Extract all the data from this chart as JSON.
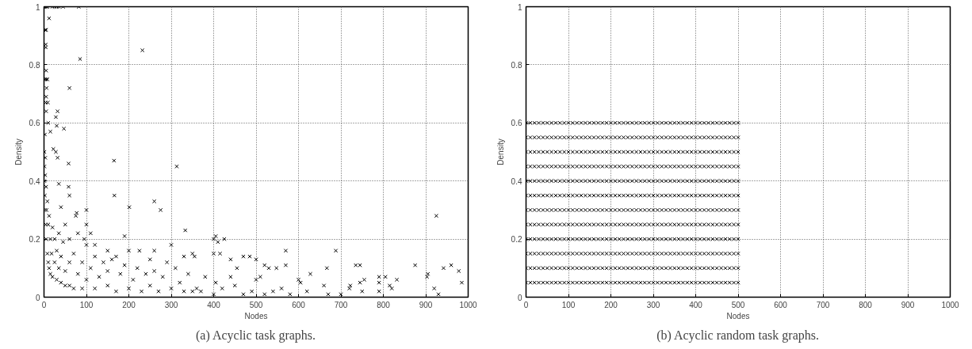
{
  "chart_data": [
    {
      "type": "scatter",
      "title": "(a) Acyclic task graphs.",
      "xlabel": "Nodes",
      "ylabel": "Density",
      "xlim": [
        0,
        1000
      ],
      "ylim": [
        0,
        1
      ],
      "xticks": [
        0,
        100,
        200,
        300,
        400,
        500,
        600,
        700,
        800,
        900,
        1000
      ],
      "yticks": [
        0,
        0.2,
        0.4,
        0.6,
        0.8,
        1
      ],
      "grid": true,
      "marker": "cross",
      "series": [
        {
          "color": "#000000",
          "x": [
            1,
            3,
            5,
            8,
            20,
            25,
            30,
            35,
            45,
            82,
            3,
            5,
            4,
            4,
            12,
            5,
            5,
            2,
            8,
            6,
            9,
            4,
            5,
            5,
            10,
            2,
            15,
            28,
            32,
            30,
            47,
            60,
            85,
            232,
            58,
            22,
            28,
            32,
            165,
            313,
            166,
            260,
            275,
            201,
            333,
            60,
            58,
            35,
            40,
            100,
            77,
            100,
            110,
            190,
            225,
            300,
            405,
            400,
            425,
            410,
            570,
            688,
            925,
            875,
            960,
            942,
            978,
            985,
            903,
            920,
            930,
            745,
            735,
            667,
            570,
            548,
            520,
            530,
            455,
            470,
            485,
            500,
            440,
            400,
            415,
            350,
            330,
            355,
            260,
            250,
            200,
            170,
            150,
            120,
            95,
            80,
            1,
            1,
            1,
            2,
            2,
            3,
            3,
            4,
            5,
            5,
            6,
            8,
            8,
            10,
            10,
            12,
            12,
            15,
            15,
            18,
            20,
            20,
            25,
            25,
            30,
            30,
            35,
            35,
            40,
            40,
            45,
            50,
            50,
            50,
            60,
            60,
            60,
            70,
            70,
            75,
            80,
            90,
            90,
            100,
            100,
            110,
            120,
            120,
            130,
            140,
            150,
            150,
            160,
            170,
            180,
            190,
            200,
            210,
            220,
            230,
            240,
            250,
            260,
            270,
            280,
            290,
            300,
            310,
            320,
            330,
            340,
            350,
            360,
            370,
            380,
            400,
            405,
            420,
            440,
            450,
            470,
            490,
            500,
            510,
            520,
            540,
            560,
            580,
            600,
            605,
            620,
            628,
            660,
            670,
            700,
            720,
            722,
            745,
            755,
            750,
            790,
            790,
            790,
            805,
            815,
            820,
            832,
            905
          ],
          "values": [
            1,
            1,
            1,
            1,
            1,
            1,
            1,
            1,
            1,
            1,
            0.92,
            0.92,
            0.87,
            0.86,
            0.96,
            0.78,
            0.75,
            0.75,
            0.75,
            0.72,
            0.67,
            0.67,
            0.69,
            0.64,
            0.6,
            0.56,
            0.57,
            0.62,
            0.64,
            0.59,
            0.58,
            0.72,
            0.82,
            0.85,
            0.46,
            0.51,
            0.5,
            0.48,
            0.47,
            0.45,
            0.35,
            0.33,
            0.3,
            0.31,
            0.23,
            0.35,
            0.38,
            0.39,
            0.31,
            0.3,
            0.29,
            0.25,
            0.22,
            0.21,
            0.16,
            0.18,
            0.21,
            0.2,
            0.2,
            0.19,
            0.16,
            0.16,
            0.28,
            0.11,
            0.11,
            0.1,
            0.09,
            0.05,
            0.07,
            0.03,
            0.01,
            0.11,
            0.11,
            0.1,
            0.11,
            0.1,
            0.11,
            0.1,
            0.1,
            0.14,
            0.14,
            0.13,
            0.13,
            0.15,
            0.15,
            0.15,
            0.14,
            0.14,
            0.16,
            0.13,
            0.16,
            0.14,
            0.16,
            0.18,
            0.2,
            0.22,
            0.5,
            0.45,
            0.4,
            0.35,
            0.3,
            0.48,
            0.42,
            0.25,
            0.38,
            0.2,
            0.3,
            0.15,
            0.33,
            0.12,
            0.25,
            0.28,
            0.1,
            0.2,
            0.08,
            0.15,
            0.24,
            0.07,
            0.12,
            0.2,
            0.06,
            0.16,
            0.1,
            0.22,
            0.05,
            0.14,
            0.19,
            0.04,
            0.09,
            0.25,
            0.12,
            0.04,
            0.2,
            0.03,
            0.15,
            0.28,
            0.08,
            0.12,
            0.03,
            0.18,
            0.06,
            0.1,
            0.03,
            0.14,
            0.07,
            0.12,
            0.04,
            0.09,
            0.13,
            0.02,
            0.08,
            0.11,
            0.03,
            0.06,
            0.1,
            0.02,
            0.08,
            0.04,
            0.09,
            0.02,
            0.07,
            0.12,
            0.03,
            0.1,
            0.05,
            0.02,
            0.08,
            0.02,
            0.03,
            0.02,
            0.07,
            0.01,
            0.05,
            0.03,
            0.07,
            0.04,
            0.01,
            0.02,
            0.06,
            0.07,
            0.01,
            0.02,
            0.03,
            0.01,
            0.06,
            0.05,
            0.02,
            0.08,
            0.04,
            0.01,
            0.01,
            0.03,
            0.04,
            0.05,
            0.06,
            0.02,
            0.07,
            0.05,
            0.02,
            0.07,
            0.04,
            0.03,
            0.06,
            0.08
          ]
        }
      ]
    },
    {
      "type": "scatter",
      "title": "(b) Acyclic random task graphs.",
      "xlabel": "Nodes",
      "ylabel": "Density",
      "xlim": [
        0,
        1000
      ],
      "ylim": [
        0,
        1
      ],
      "xticks": [
        0,
        100,
        200,
        300,
        400,
        500,
        600,
        700,
        800,
        900,
        1000
      ],
      "yticks": [
        0,
        0.2,
        0.4,
        0.6,
        0.8,
        1
      ],
      "grid": true,
      "marker": "cross",
      "x": [
        0,
        10,
        20,
        30,
        40,
        50,
        60,
        70,
        80,
        90,
        100,
        110,
        120,
        130,
        140,
        150,
        160,
        170,
        180,
        190,
        200,
        210,
        220,
        230,
        240,
        250,
        260,
        270,
        280,
        290,
        300,
        310,
        320,
        330,
        340,
        350,
        360,
        370,
        380,
        390,
        400,
        410,
        420,
        430,
        440,
        450,
        460,
        470,
        480,
        490,
        500
      ],
      "series": [
        {
          "color": "#000000",
          "values": [
            0.05,
            0.05,
            0.05,
            0.05,
            0.05,
            0.05,
            0.05,
            0.05,
            0.05,
            0.05,
            0.05,
            0.05,
            0.05,
            0.05,
            0.05,
            0.05,
            0.05,
            0.05,
            0.05,
            0.05,
            0.05,
            0.05,
            0.05,
            0.05,
            0.05,
            0.05,
            0.05,
            0.05,
            0.05,
            0.05,
            0.05,
            0.05,
            0.05,
            0.05,
            0.05,
            0.05,
            0.05,
            0.05,
            0.05,
            0.05,
            0.05,
            0.05,
            0.05,
            0.05,
            0.05,
            0.05,
            0.05,
            0.05,
            0.05,
            0.05,
            0.05
          ]
        },
        {
          "color": "#000000",
          "values": [
            0.1,
            0.1,
            0.1,
            0.1,
            0.1,
            0.1,
            0.1,
            0.1,
            0.1,
            0.1,
            0.1,
            0.1,
            0.1,
            0.1,
            0.1,
            0.1,
            0.1,
            0.1,
            0.1,
            0.1,
            0.1,
            0.1,
            0.1,
            0.1,
            0.1,
            0.1,
            0.1,
            0.1,
            0.1,
            0.1,
            0.1,
            0.1,
            0.1,
            0.1,
            0.1,
            0.1,
            0.1,
            0.1,
            0.1,
            0.1,
            0.1,
            0.1,
            0.1,
            0.1,
            0.1,
            0.1,
            0.1,
            0.1,
            0.1,
            0.1,
            0.1
          ]
        },
        {
          "color": "#000000",
          "values": [
            0.15,
            0.15,
            0.15,
            0.15,
            0.15,
            0.15,
            0.15,
            0.15,
            0.15,
            0.15,
            0.15,
            0.15,
            0.15,
            0.15,
            0.15,
            0.15,
            0.15,
            0.15,
            0.15,
            0.15,
            0.15,
            0.15,
            0.15,
            0.15,
            0.15,
            0.15,
            0.15,
            0.15,
            0.15,
            0.15,
            0.15,
            0.15,
            0.15,
            0.15,
            0.15,
            0.15,
            0.15,
            0.15,
            0.15,
            0.15,
            0.15,
            0.15,
            0.15,
            0.15,
            0.15,
            0.15,
            0.15,
            0.15,
            0.15,
            0.15,
            0.15
          ]
        },
        {
          "color": "#000000",
          "values": [
            0.2,
            0.2,
            0.2,
            0.2,
            0.2,
            0.2,
            0.2,
            0.2,
            0.2,
            0.2,
            0.2,
            0.2,
            0.2,
            0.2,
            0.2,
            0.2,
            0.2,
            0.2,
            0.2,
            0.2,
            0.2,
            0.2,
            0.2,
            0.2,
            0.2,
            0.2,
            0.2,
            0.2,
            0.2,
            0.2,
            0.2,
            0.2,
            0.2,
            0.2,
            0.2,
            0.2,
            0.2,
            0.2,
            0.2,
            0.2,
            0.2,
            0.2,
            0.2,
            0.2,
            0.2,
            0.2,
            0.2,
            0.2,
            0.2,
            0.2,
            0.2
          ]
        },
        {
          "color": "#000000",
          "values": [
            0.25,
            0.25,
            0.25,
            0.25,
            0.25,
            0.25,
            0.25,
            0.25,
            0.25,
            0.25,
            0.25,
            0.25,
            0.25,
            0.25,
            0.25,
            0.25,
            0.25,
            0.25,
            0.25,
            0.25,
            0.25,
            0.25,
            0.25,
            0.25,
            0.25,
            0.25,
            0.25,
            0.25,
            0.25,
            0.25,
            0.25,
            0.25,
            0.25,
            0.25,
            0.25,
            0.25,
            0.25,
            0.25,
            0.25,
            0.25,
            0.25,
            0.25,
            0.25,
            0.25,
            0.25,
            0.25,
            0.25,
            0.25,
            0.25,
            0.25,
            0.25
          ]
        },
        {
          "color": "#000000",
          "values": [
            0.3,
            0.3,
            0.3,
            0.3,
            0.3,
            0.3,
            0.3,
            0.3,
            0.3,
            0.3,
            0.3,
            0.3,
            0.3,
            0.3,
            0.3,
            0.3,
            0.3,
            0.3,
            0.3,
            0.3,
            0.3,
            0.3,
            0.3,
            0.3,
            0.3,
            0.3,
            0.3,
            0.3,
            0.3,
            0.3,
            0.3,
            0.3,
            0.3,
            0.3,
            0.3,
            0.3,
            0.3,
            0.3,
            0.3,
            0.3,
            0.3,
            0.3,
            0.3,
            0.3,
            0.3,
            0.3,
            0.3,
            0.3,
            0.3,
            0.3,
            0.3
          ]
        },
        {
          "color": "#000000",
          "values": [
            0.35,
            0.35,
            0.35,
            0.35,
            0.35,
            0.35,
            0.35,
            0.35,
            0.35,
            0.35,
            0.35,
            0.35,
            0.35,
            0.35,
            0.35,
            0.35,
            0.35,
            0.35,
            0.35,
            0.35,
            0.35,
            0.35,
            0.35,
            0.35,
            0.35,
            0.35,
            0.35,
            0.35,
            0.35,
            0.35,
            0.35,
            0.35,
            0.35,
            0.35,
            0.35,
            0.35,
            0.35,
            0.35,
            0.35,
            0.35,
            0.35,
            0.35,
            0.35,
            0.35,
            0.35,
            0.35,
            0.35,
            0.35,
            0.35,
            0.35,
            0.35
          ]
        },
        {
          "color": "#000000",
          "values": [
            0.4,
            0.4,
            0.4,
            0.4,
            0.4,
            0.4,
            0.4,
            0.4,
            0.4,
            0.4,
            0.4,
            0.4,
            0.4,
            0.4,
            0.4,
            0.4,
            0.4,
            0.4,
            0.4,
            0.4,
            0.4,
            0.4,
            0.4,
            0.4,
            0.4,
            0.4,
            0.4,
            0.4,
            0.4,
            0.4,
            0.4,
            0.4,
            0.4,
            0.4,
            0.4,
            0.4,
            0.4,
            0.4,
            0.4,
            0.4,
            0.4,
            0.4,
            0.4,
            0.4,
            0.4,
            0.4,
            0.4,
            0.4,
            0.4,
            0.4,
            0.4
          ]
        },
        {
          "color": "#000000",
          "values": [
            0.45,
            0.45,
            0.45,
            0.45,
            0.45,
            0.45,
            0.45,
            0.45,
            0.45,
            0.45,
            0.45,
            0.45,
            0.45,
            0.45,
            0.45,
            0.45,
            0.45,
            0.45,
            0.45,
            0.45,
            0.45,
            0.45,
            0.45,
            0.45,
            0.45,
            0.45,
            0.45,
            0.45,
            0.45,
            0.45,
            0.45,
            0.45,
            0.45,
            0.45,
            0.45,
            0.45,
            0.45,
            0.45,
            0.45,
            0.45,
            0.45,
            0.45,
            0.45,
            0.45,
            0.45,
            0.45,
            0.45,
            0.45,
            0.45,
            0.45,
            0.45
          ]
        },
        {
          "color": "#000000",
          "values": [
            0.5,
            0.5,
            0.5,
            0.5,
            0.5,
            0.5,
            0.5,
            0.5,
            0.5,
            0.5,
            0.5,
            0.5,
            0.5,
            0.5,
            0.5,
            0.5,
            0.5,
            0.5,
            0.5,
            0.5,
            0.5,
            0.5,
            0.5,
            0.5,
            0.5,
            0.5,
            0.5,
            0.5,
            0.5,
            0.5,
            0.5,
            0.5,
            0.5,
            0.5,
            0.5,
            0.5,
            0.5,
            0.5,
            0.5,
            0.5,
            0.5,
            0.5,
            0.5,
            0.5,
            0.5,
            0.5,
            0.5,
            0.5,
            0.5,
            0.5,
            0.5
          ]
        },
        {
          "color": "#000000",
          "values": [
            0.55,
            0.55,
            0.55,
            0.55,
            0.55,
            0.55,
            0.55,
            0.55,
            0.55,
            0.55,
            0.55,
            0.55,
            0.55,
            0.55,
            0.55,
            0.55,
            0.55,
            0.55,
            0.55,
            0.55,
            0.55,
            0.55,
            0.55,
            0.55,
            0.55,
            0.55,
            0.55,
            0.55,
            0.55,
            0.55,
            0.55,
            0.55,
            0.55,
            0.55,
            0.55,
            0.55,
            0.55,
            0.55,
            0.55,
            0.55,
            0.55,
            0.55,
            0.55,
            0.55,
            0.55,
            0.55,
            0.55,
            0.55,
            0.55,
            0.55,
            0.55
          ]
        },
        {
          "color": "#000000",
          "values": [
            0.6,
            0.6,
            0.6,
            0.6,
            0.6,
            0.6,
            0.6,
            0.6,
            0.6,
            0.6,
            0.6,
            0.6,
            0.6,
            0.6,
            0.6,
            0.6,
            0.6,
            0.6,
            0.6,
            0.6,
            0.6,
            0.6,
            0.6,
            0.6,
            0.6,
            0.6,
            0.6,
            0.6,
            0.6,
            0.6,
            0.6,
            0.6,
            0.6,
            0.6,
            0.6,
            0.6,
            0.6,
            0.6,
            0.6,
            0.6,
            0.6,
            0.6,
            0.6,
            0.6,
            0.6,
            0.6,
            0.6,
            0.6,
            0.6,
            0.6,
            0.6
          ]
        }
      ]
    }
  ]
}
